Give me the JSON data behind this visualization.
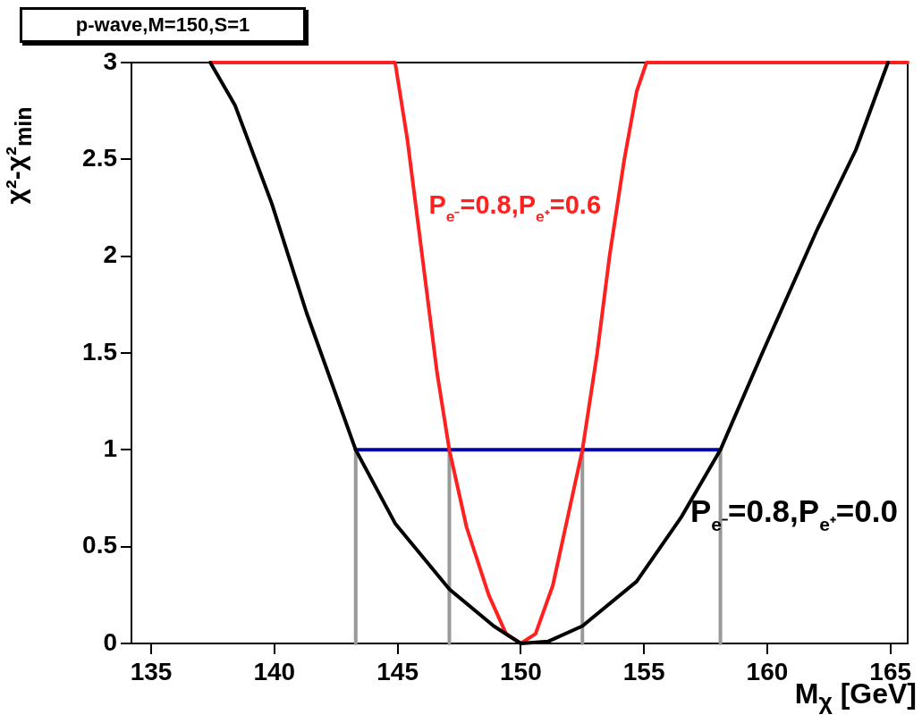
{
  "chart_data": {
    "type": "line",
    "title": "p-wave,M=150,S=1",
    "xlabel": "M$_{χ}$ [GeV]",
    "ylabel": "χ²-χ²$_{min}$",
    "xlim": [
      134.2,
      165.7
    ],
    "xticks": [
      135,
      140,
      145,
      150,
      155,
      160,
      165
    ],
    "ylim": [
      0,
      3
    ],
    "yticks": [
      0,
      0.5,
      1,
      1.5,
      2,
      2.5,
      3
    ],
    "grid": false,
    "legend": false,
    "marker": "none",
    "line_style": "solid",
    "series": [
      {
        "name": "P$_{e⁻}$=0.8,P$_{e⁺}$=0.0",
        "color": "#000000",
        "x": [
          137.4,
          138.4,
          139.9,
          141.3,
          143.3,
          144.9,
          147.1,
          148.9,
          150,
          151.1,
          152.5,
          154.7,
          156.5,
          158.1,
          159.8,
          162.0,
          163.6,
          164.9
        ],
        "values": [
          3.0,
          2.78,
          2.27,
          1.71,
          1.0,
          0.62,
          0.28,
          0.09,
          0,
          0.01,
          0.09,
          0.32,
          0.65,
          1.0,
          1.5,
          2.13,
          2.55,
          3.0
        ]
      },
      {
        "name": "P$_{e⁻}$=0.8,P$_{e⁺}$=0.6",
        "color": "#ff2020",
        "x": [
          137.4,
          144.4,
          144.9,
          145.4,
          146,
          146.6,
          147.1,
          147.8,
          148.7,
          149.4,
          150,
          150.6,
          151.3,
          151.9,
          152.5,
          153.1,
          153.6,
          154.2,
          154.7,
          155.1,
          165.7
        ],
        "values": [
          3,
          3,
          3,
          2.6,
          2.0,
          1.4,
          1.0,
          0.6,
          0.25,
          0.05,
          0,
          0.05,
          0.3,
          0.65,
          1.0,
          1.5,
          2.0,
          2.5,
          2.85,
          3,
          3
        ]
      },
      {
        "color": "#0000aa",
        "x": [
          143.3,
          158.1
        ],
        "values": [
          1,
          1
        ]
      },
      {
        "color": "#999999",
        "x": [
          143.3,
          143.3
        ],
        "values": [
          0,
          1
        ]
      },
      {
        "color": "#999999",
        "x": [
          147.1,
          147.1
        ],
        "values": [
          0,
          1
        ]
      },
      {
        "color": "#999999",
        "x": [
          152.5,
          152.5
        ],
        "values": [
          0,
          1
        ]
      },
      {
        "color": "#999999",
        "x": [
          158.1,
          158.1
        ],
        "values": [
          0,
          1
        ]
      }
    ]
  }
}
